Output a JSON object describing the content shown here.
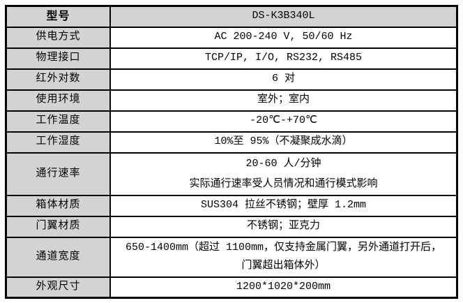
{
  "colors": {
    "header_and_label_bg": "#d3d3d3",
    "border": "#000000",
    "value_bg": "#ffffff",
    "text": "#000000"
  },
  "table": {
    "rows": [
      {
        "label": "型号",
        "value": "DS-K3B340L"
      },
      {
        "label": "供电方式",
        "value": "AC 200-240 V, 50/60 Hz"
      },
      {
        "label": "物理接口",
        "value": "TCP/IP, I/O, RS232, RS485"
      },
      {
        "label": "红外对数",
        "value": "6 对"
      },
      {
        "label": "使用环境",
        "value": "室外；室内"
      },
      {
        "label": "工作温度",
        "value": "-20℃-+70℃"
      },
      {
        "label": "工作湿度",
        "value": "10%至 95%（不凝聚成水滴）"
      },
      {
        "label": "通行速率",
        "value": "20-60 人/分钟",
        "value2": "实际通行速率受人员情况和通行模式影响"
      },
      {
        "label": "箱体材质",
        "value": "SUS304 拉丝不锈钢；壁厚 1.2mm"
      },
      {
        "label": "门翼材质",
        "value": "不锈钢；亚克力"
      },
      {
        "label": "通道宽度",
        "value": "650-1400mm（超过 1100mm，仅支持金属门翼，另外通道打开后，",
        "value2": "门翼超出箱体外）"
      },
      {
        "label": "外观尺寸",
        "value": "1200*1020*200mm"
      }
    ]
  }
}
